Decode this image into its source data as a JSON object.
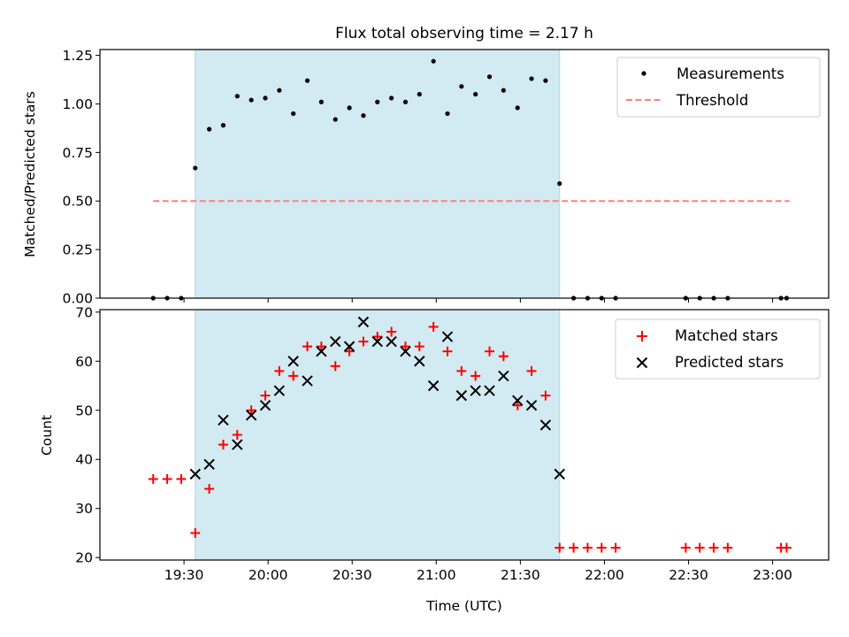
{
  "chart_data": [
    {
      "type": "scatter",
      "title": "Flux total observing time = 2.17 h",
      "xlabel": "",
      "ylabel": "Matched/Predicted stars",
      "xlim": [
        "19:00",
        "23:20"
      ],
      "ylim": [
        0,
        1.28
      ],
      "y_ticks": [
        "0.00",
        "0.25",
        "0.50",
        "0.75",
        "1.00",
        "1.25"
      ],
      "shaded_region": {
        "from": "19:34",
        "to": "21:44",
        "color": "#add8e6"
      },
      "threshold": {
        "name": "Threshold",
        "y": 0.5,
        "x_from": "19:19",
        "x_to": "23:06",
        "color": "#ff7f7f"
      },
      "legend_position": "top-right",
      "series": [
        {
          "name": "Measurements",
          "color": "#000000",
          "marker": "dot",
          "points": [
            [
              "19:19",
              0
            ],
            [
              "19:24",
              0
            ],
            [
              "19:29",
              0
            ],
            [
              "19:34",
              0.67
            ],
            [
              "19:39",
              0.87
            ],
            [
              "19:44",
              0.89
            ],
            [
              "19:49",
              1.04
            ],
            [
              "19:54",
              1.02
            ],
            [
              "19:59",
              1.03
            ],
            [
              "20:04",
              1.07
            ],
            [
              "20:09",
              0.95
            ],
            [
              "20:14",
              1.12
            ],
            [
              "20:19",
              1.01
            ],
            [
              "20:24",
              0.92
            ],
            [
              "20:29",
              0.98
            ],
            [
              "20:34",
              0.94
            ],
            [
              "20:39",
              1.01
            ],
            [
              "20:44",
              1.03
            ],
            [
              "20:49",
              1.01
            ],
            [
              "20:54",
              1.05
            ],
            [
              "20:59",
              1.22
            ],
            [
              "21:04",
              0.95
            ],
            [
              "21:09",
              1.09
            ],
            [
              "21:14",
              1.05
            ],
            [
              "21:19",
              1.14
            ],
            [
              "21:24",
              1.07
            ],
            [
              "21:29",
              0.98
            ],
            [
              "21:34",
              1.13
            ],
            [
              "21:39",
              1.12
            ],
            [
              "21:44",
              0.59
            ],
            [
              "21:49",
              0
            ],
            [
              "21:54",
              0
            ],
            [
              "21:59",
              0
            ],
            [
              "22:04",
              0
            ],
            [
              "22:29",
              0
            ],
            [
              "22:34",
              0
            ],
            [
              "22:39",
              0
            ],
            [
              "22:44",
              0
            ],
            [
              "23:03",
              0
            ],
            [
              "23:05",
              0
            ]
          ]
        }
      ]
    },
    {
      "type": "scatter",
      "title": "",
      "xlabel": "Time (UTC)",
      "ylabel": "Count",
      "xlim": [
        "19:00",
        "23:20"
      ],
      "ylim": [
        19.5,
        70.5
      ],
      "y_ticks": [
        "20",
        "30",
        "40",
        "50",
        "60",
        "70"
      ],
      "x_ticks": [
        "19:30",
        "20:00",
        "20:30",
        "21:00",
        "21:30",
        "22:00",
        "22:30",
        "23:00"
      ],
      "shaded_region": {
        "from": "19:34",
        "to": "21:44",
        "color": "#add8e6"
      },
      "legend_position": "top-right",
      "series": [
        {
          "name": "Matched stars",
          "color": "#ff0000",
          "marker": "plus",
          "points": [
            [
              "19:19",
              36
            ],
            [
              "19:24",
              36
            ],
            [
              "19:29",
              36
            ],
            [
              "19:34",
              25
            ],
            [
              "19:39",
              34
            ],
            [
              "19:44",
              43
            ],
            [
              "19:49",
              45
            ],
            [
              "19:54",
              50
            ],
            [
              "19:59",
              53
            ],
            [
              "20:04",
              58
            ],
            [
              "20:09",
              57
            ],
            [
              "20:14",
              63
            ],
            [
              "20:19",
              63
            ],
            [
              "20:24",
              59
            ],
            [
              "20:29",
              62
            ],
            [
              "20:34",
              64
            ],
            [
              "20:39",
              65
            ],
            [
              "20:44",
              66
            ],
            [
              "20:49",
              63
            ],
            [
              "20:54",
              63
            ],
            [
              "20:59",
              67
            ],
            [
              "21:04",
              62
            ],
            [
              "21:09",
              58
            ],
            [
              "21:14",
              57
            ],
            [
              "21:19",
              62
            ],
            [
              "21:24",
              61
            ],
            [
              "21:29",
              51
            ],
            [
              "21:34",
              58
            ],
            [
              "21:39",
              53
            ],
            [
              "21:44",
              22
            ],
            [
              "21:49",
              22
            ],
            [
              "21:54",
              22
            ],
            [
              "21:59",
              22
            ],
            [
              "22:04",
              22
            ],
            [
              "22:29",
              22
            ],
            [
              "22:34",
              22
            ],
            [
              "22:39",
              22
            ],
            [
              "22:44",
              22
            ],
            [
              "23:03",
              22
            ],
            [
              "23:05",
              22
            ]
          ]
        },
        {
          "name": "Predicted stars",
          "color": "#000000",
          "marker": "x",
          "points": [
            [
              "19:34",
              37
            ],
            [
              "19:39",
              39
            ],
            [
              "19:44",
              48
            ],
            [
              "19:49",
              43
            ],
            [
              "19:54",
              49
            ],
            [
              "19:59",
              51
            ],
            [
              "20:04",
              54
            ],
            [
              "20:09",
              60
            ],
            [
              "20:14",
              56
            ],
            [
              "20:19",
              62
            ],
            [
              "20:24",
              64
            ],
            [
              "20:29",
              63
            ],
            [
              "20:34",
              68
            ],
            [
              "20:39",
              64
            ],
            [
              "20:44",
              64
            ],
            [
              "20:49",
              62
            ],
            [
              "20:54",
              60
            ],
            [
              "20:59",
              55
            ],
            [
              "21:04",
              65
            ],
            [
              "21:09",
              53
            ],
            [
              "21:14",
              54
            ],
            [
              "21:19",
              54
            ],
            [
              "21:24",
              57
            ],
            [
              "21:29",
              52
            ],
            [
              "21:34",
              51
            ],
            [
              "21:39",
              47
            ],
            [
              "21:44",
              37
            ]
          ]
        }
      ]
    }
  ]
}
